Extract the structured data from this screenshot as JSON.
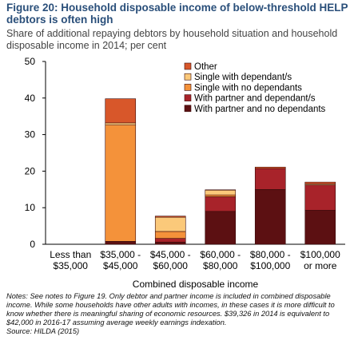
{
  "figure": {
    "title": "Figure 20: Household disposable income of below-threshold HELP debtors is often high",
    "subtitle": "Share of additional repaying debtors by household situation and household disposable income in 2014; per cent"
  },
  "chart_data": {
    "type": "bar",
    "stacked": true,
    "categories": [
      [
        "Less than",
        "$35,000"
      ],
      [
        "$35,000 -",
        "$45,000"
      ],
      [
        "$45,000 -",
        "$60,000"
      ],
      [
        "$60,000 -",
        "$80,000"
      ],
      [
        "$80,000 -",
        "$100,000"
      ],
      [
        "$100,000",
        "or more"
      ]
    ],
    "xlabel": "Combined disposable income",
    "ylabel": "",
    "ylim": [
      0,
      50
    ],
    "yticks": [
      0,
      10,
      20,
      30,
      40,
      50
    ],
    "grid": false,
    "legend_position": "top-right",
    "series": [
      {
        "name": "With partner and no dependants",
        "color": "#5c1012",
        "values": [
          0,
          0.8,
          0.6,
          9.0,
          15.0,
          9.3
        ]
      },
      {
        "name": "With partner and dependant/s",
        "color": "#a8232a",
        "values": [
          0,
          0.0,
          1.0,
          4.0,
          5.7,
          6.9
        ]
      },
      {
        "name": "Single with no dependants",
        "color": "#f4923a",
        "values": [
          0,
          31.8,
          1.9,
          0.5,
          0.0,
          0.0
        ]
      },
      {
        "name": "Single with dependant/s",
        "color": "#fbc97a",
        "values": [
          0,
          0.6,
          3.9,
          1.3,
          0.0,
          0.3
        ]
      },
      {
        "name": "Other",
        "color": "#d8572a",
        "values": [
          0,
          6.6,
          0.3,
          0.1,
          0.4,
          0.5
        ]
      }
    ]
  },
  "notes": {
    "text": "Notes: See notes to Figure 19. Only debtor and partner income is included in combined disposable income. While some households have other adults with incomes, in these cases it is more difficult to know whether there is meaningful sharing of economic resources. $39,326 in 2014 is equivalent to $42,000 in 2016-17 assuming average weekly earnings indexation.",
    "source": "Source: HILDA (2015)"
  }
}
